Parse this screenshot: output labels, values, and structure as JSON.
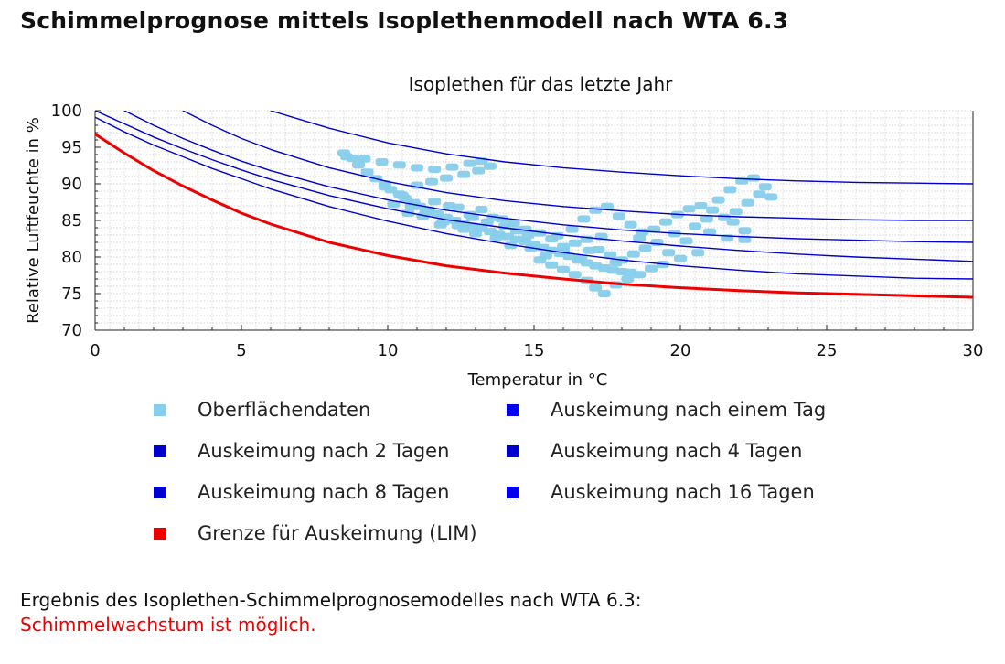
{
  "page": {
    "title": "Schimmelprognose mittels Isoplethenmodell nach WTA 6.3"
  },
  "colors": {
    "surface": "#87ceeb",
    "isopleth": "#0000cc",
    "legend_isopleth": "#0000ee",
    "lim": "#ee0000",
    "result": "#ee0000"
  },
  "chart_data": {
    "type": "line",
    "title": "Isoplethen für das letzte Jahr",
    "xlabel": "Temperatur in °C",
    "ylabel": "Relative Luftfeuchte in %",
    "xlim": [
      0,
      30
    ],
    "ylim": [
      70,
      100
    ],
    "xticks": [
      0,
      5,
      10,
      15,
      20,
      25,
      30
    ],
    "yticks": [
      70,
      75,
      80,
      85,
      90,
      95,
      100
    ],
    "grid": true,
    "x": [
      0,
      1,
      2,
      3,
      4,
      5,
      6,
      8,
      10,
      12,
      14,
      16,
      18,
      20,
      22,
      24,
      26,
      28,
      30
    ],
    "series": [
      {
        "name": "Auskeimung nach einem Tag",
        "color": "#0000cc",
        "values": [
          null,
          null,
          null,
          null,
          null,
          null,
          100,
          97.6,
          95.6,
          94.1,
          93.0,
          92.2,
          91.6,
          91.1,
          90.7,
          90.4,
          90.2,
          90.1,
          90.0
        ]
      },
      {
        "name": "Auskeimung nach 2 Tagen",
        "color": "#0000cc",
        "values": [
          null,
          null,
          null,
          100,
          98.0,
          96.2,
          94.7,
          92.2,
          90.3,
          88.8,
          87.7,
          86.9,
          86.3,
          85.8,
          85.5,
          85.3,
          85.1,
          85.0,
          85.0
        ]
      },
      {
        "name": "Auskeimung nach 4 Tagen",
        "color": "#0000cc",
        "values": [
          null,
          100,
          98.0,
          96.2,
          94.6,
          93.1,
          91.8,
          89.6,
          87.8,
          86.4,
          85.3,
          84.4,
          83.7,
          83.2,
          82.8,
          82.5,
          82.3,
          82.1,
          82.0
        ]
      },
      {
        "name": "Auskeimung nach 8 Tagen",
        "color": "#0000cc",
        "values": [
          100,
          98.2,
          96.4,
          94.8,
          93.3,
          91.9,
          90.6,
          88.4,
          86.6,
          85.1,
          84.0,
          83.0,
          82.2,
          81.5,
          80.9,
          80.4,
          80.0,
          79.7,
          79.4
        ]
      },
      {
        "name": "Auskeimung nach 16 Tagen",
        "color": "#0000cc",
        "values": [
          99.1,
          97.1,
          95.3,
          93.7,
          92.1,
          90.7,
          89.3,
          86.9,
          84.9,
          83.2,
          81.8,
          80.6,
          79.6,
          78.8,
          78.2,
          77.7,
          77.4,
          77.1,
          77.0
        ]
      },
      {
        "name": "Grenze für Auskeimung (LIM)",
        "color": "#ee0000",
        "values": [
          96.8,
          94.2,
          91.8,
          89.7,
          87.8,
          86.0,
          84.5,
          82.0,
          80.2,
          78.8,
          77.8,
          77.0,
          76.3,
          75.8,
          75.4,
          75.1,
          74.9,
          74.7,
          74.5
        ]
      }
    ],
    "scatter": {
      "name": "Oberflächendaten",
      "color": "#87ceeb",
      "points": [
        [
          8.5,
          94.2
        ],
        [
          8.8,
          93.5
        ],
        [
          9.0,
          92.6
        ],
        [
          9.3,
          91.6
        ],
        [
          9.6,
          90.7
        ],
        [
          9.9,
          90.0
        ],
        [
          10.1,
          89.2
        ],
        [
          10.4,
          88.6
        ],
        [
          10.6,
          88.0
        ],
        [
          10.9,
          87.4
        ],
        [
          11.1,
          86.9
        ],
        [
          11.4,
          86.4
        ],
        [
          11.7,
          85.9
        ],
        [
          12.0,
          85.4
        ],
        [
          12.3,
          85.0
        ],
        [
          12.6,
          84.6
        ],
        [
          12.9,
          84.2
        ],
        [
          13.2,
          83.9
        ],
        [
          13.5,
          83.5
        ],
        [
          13.8,
          83.1
        ],
        [
          14.1,
          82.8
        ],
        [
          14.4,
          82.4
        ],
        [
          14.7,
          82.1
        ],
        [
          15.0,
          81.7
        ],
        [
          15.3,
          81.3
        ],
        [
          15.6,
          80.9
        ],
        [
          15.9,
          80.5
        ],
        [
          16.2,
          80.1
        ],
        [
          16.5,
          79.6
        ],
        [
          16.8,
          79.2
        ],
        [
          17.1,
          78.8
        ],
        [
          17.4,
          78.5
        ],
        [
          17.7,
          78.2
        ],
        [
          18.0,
          78.0
        ],
        [
          18.3,
          77.9
        ],
        [
          8.6,
          93.7
        ],
        [
          9.2,
          93.4
        ],
        [
          9.8,
          93.0
        ],
        [
          10.4,
          92.6
        ],
        [
          11.0,
          92.2
        ],
        [
          11.6,
          92.0
        ],
        [
          12.2,
          92.3
        ],
        [
          12.8,
          92.8
        ],
        [
          13.2,
          93.1
        ],
        [
          13.5,
          92.4
        ],
        [
          13.1,
          91.8
        ],
        [
          12.6,
          91.3
        ],
        [
          12.0,
          90.8
        ],
        [
          11.5,
          90.3
        ],
        [
          11.0,
          89.8
        ],
        [
          10.2,
          87.2
        ],
        [
          10.8,
          86.9
        ],
        [
          11.3,
          86.1
        ],
        [
          11.9,
          84.8
        ],
        [
          12.4,
          84.3
        ],
        [
          12.8,
          85.8
        ],
        [
          13.2,
          86.5
        ],
        [
          13.6,
          85.4
        ],
        [
          14.0,
          84.2
        ],
        [
          14.4,
          83.6
        ],
        [
          14.8,
          83.0
        ],
        [
          15.2,
          83.3
        ],
        [
          15.6,
          82.5
        ],
        [
          16.0,
          81.4
        ],
        [
          16.4,
          81.9
        ],
        [
          16.8,
          82.4
        ],
        [
          17.2,
          81.0
        ],
        [
          17.6,
          80.3
        ],
        [
          18.0,
          79.6
        ],
        [
          18.4,
          80.4
        ],
        [
          18.8,
          81.2
        ],
        [
          19.2,
          82.0
        ],
        [
          19.6,
          80.6
        ],
        [
          20.0,
          79.8
        ],
        [
          15.2,
          79.6
        ],
        [
          15.6,
          78.9
        ],
        [
          16.0,
          78.3
        ],
        [
          16.4,
          77.6
        ],
        [
          16.8,
          76.8
        ],
        [
          17.1,
          75.8
        ],
        [
          17.4,
          75.0
        ],
        [
          17.8,
          76.2
        ],
        [
          18.2,
          77.0
        ],
        [
          18.6,
          77.6
        ],
        [
          19.0,
          78.4
        ],
        [
          16.3,
          83.8
        ],
        [
          16.7,
          85.2
        ],
        [
          17.1,
          86.4
        ],
        [
          17.5,
          86.9
        ],
        [
          17.9,
          85.6
        ],
        [
          18.3,
          84.4
        ],
        [
          18.7,
          83.4
        ],
        [
          19.1,
          83.8
        ],
        [
          19.5,
          84.8
        ],
        [
          19.9,
          85.8
        ],
        [
          20.3,
          86.6
        ],
        [
          20.7,
          87.0
        ],
        [
          21.1,
          86.4
        ],
        [
          21.5,
          85.4
        ],
        [
          21.9,
          86.2
        ],
        [
          22.3,
          87.4
        ],
        [
          22.7,
          88.6
        ],
        [
          23.1,
          88.2
        ],
        [
          22.9,
          89.6
        ],
        [
          22.5,
          90.8
        ],
        [
          22.1,
          90.4
        ],
        [
          21.7,
          89.2
        ],
        [
          21.3,
          87.8
        ],
        [
          20.9,
          85.2
        ],
        [
          20.5,
          84.2
        ],
        [
          21.0,
          83.4
        ],
        [
          21.6,
          82.6
        ],
        [
          22.2,
          83.6
        ],
        [
          21.8,
          84.8
        ],
        [
          22.2,
          82.4
        ],
        [
          12.4,
          86.8
        ],
        [
          12.9,
          85.4
        ],
        [
          13.4,
          84.8
        ],
        [
          13.9,
          85.2
        ],
        [
          14.3,
          84.6
        ],
        [
          14.7,
          83.8
        ],
        [
          11.6,
          87.6
        ],
        [
          12.1,
          87.0
        ],
        [
          10.5,
          88.4
        ],
        [
          9.9,
          89.6
        ],
        [
          11.2,
          85.6
        ],
        [
          13.0,
          83.2
        ],
        [
          14.2,
          81.6
        ],
        [
          15.4,
          80.2
        ],
        [
          16.6,
          79.8
        ],
        [
          17.8,
          79.2
        ],
        [
          19.4,
          79.0
        ],
        [
          20.6,
          80.6
        ],
        [
          16.0,
          80.8
        ],
        [
          16.9,
          80.9
        ],
        [
          17.3,
          82.8
        ],
        [
          18.6,
          82.6
        ],
        [
          19.8,
          83.2
        ],
        [
          20.2,
          82.2
        ],
        [
          14.9,
          81.2
        ],
        [
          15.8,
          82.9
        ],
        [
          13.7,
          82.6
        ],
        [
          12.6,
          83.8
        ],
        [
          11.8,
          84.4
        ],
        [
          10.7,
          86.0
        ]
      ]
    }
  },
  "legend": [
    {
      "label": "Oberflächendaten",
      "color": "#87ceeb"
    },
    {
      "label": "Auskeimung nach einem Tag",
      "color": "#0000ee"
    },
    {
      "label": "Auskeimung nach 2 Tagen",
      "color": "#0000cc"
    },
    {
      "label": "Auskeimung nach 4 Tagen",
      "color": "#0000cc"
    },
    {
      "label": "Auskeimung nach 8 Tagen",
      "color": "#0000cc"
    },
    {
      "label": "Auskeimung nach 16 Tagen",
      "color": "#0000ee"
    },
    {
      "label": "Grenze für Auskeimung (LIM)",
      "color": "#ee0000"
    }
  ],
  "result": {
    "label": "Ergebnis des Isoplethen-Schimmelprognosemodelles nach WTA 6.3:",
    "status": "Schimmelwachstum ist möglich."
  }
}
